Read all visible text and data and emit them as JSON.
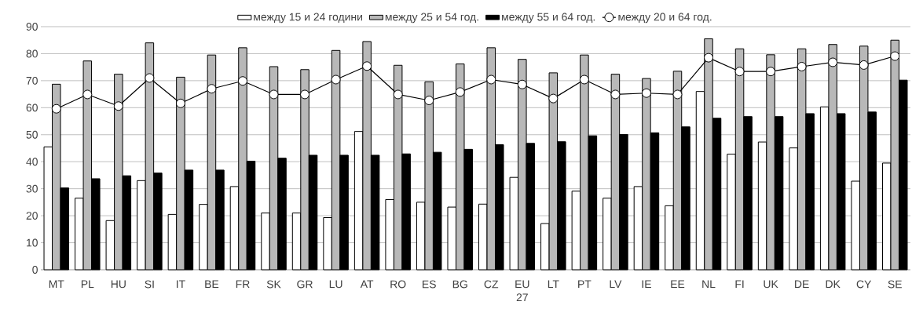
{
  "chart_data": {
    "type": "bar",
    "categories": [
      "MT",
      "PL",
      "HU",
      "SI",
      "IT",
      "BE",
      "FR",
      "SK",
      "GR",
      "LU",
      "AT",
      "RO",
      "ES",
      "BG",
      "CZ",
      "EU 27",
      "LT",
      "PT",
      "LV",
      "IE",
      "EE",
      "NL",
      "FI",
      "UK",
      "DE",
      "DK",
      "CY",
      "SE"
    ],
    "series": [
      {
        "name": "между 15 и 24 години",
        "color": "#ffffff",
        "values": [
          45.5,
          26.5,
          18.2,
          33,
          20.5,
          24.2,
          30.8,
          21,
          21,
          19.3,
          51.2,
          26,
          25,
          23.2,
          24.3,
          34.2,
          17.1,
          29.1,
          26.5,
          30.8,
          23.7,
          66,
          42.8,
          47.3,
          45.1,
          60.3,
          32.8,
          39.5
        ]
      },
      {
        "name": "между 25 и 54 год.",
        "color": "#b8b8b8",
        "values": [
          68.7,
          77.3,
          72.4,
          84,
          71.3,
          79.5,
          82.2,
          75.2,
          74.1,
          81.2,
          84.5,
          75.7,
          69.6,
          76.2,
          82.2,
          77.9,
          72.9,
          79.5,
          72.4,
          70.8,
          73.5,
          85.5,
          81.8,
          79.6,
          81.8,
          83.4,
          82.8,
          85
        ]
      },
      {
        "name": "между 55 и 64 год.",
        "color": "#000000",
        "values": [
          30.3,
          33.7,
          34.8,
          35.8,
          36.9,
          36.9,
          40.2,
          41.3,
          42.4,
          42.4,
          42.4,
          42.9,
          43.5,
          44.6,
          46.3,
          46.8,
          47.4,
          49.6,
          50.1,
          50.7,
          52.9,
          56.1,
          56.7,
          56.7,
          57.8,
          57.8,
          58.4,
          70.2
        ]
      },
      {
        "name": "между 20 и 64 год.",
        "color": "#000000",
        "type": "line",
        "marker": "circle",
        "values": [
          59.6,
          64.9,
          60.6,
          71,
          61.6,
          67,
          69.9,
          64.9,
          64.9,
          70.4,
          75.4,
          64.9,
          62.7,
          65.8,
          70.4,
          68.6,
          63.4,
          70.4,
          64.9,
          65.4,
          64.9,
          78.5,
          73.4,
          73.4,
          75.2,
          76.8,
          75.8,
          79.1
        ]
      }
    ],
    "ylim": [
      0,
      90
    ],
    "yticks": [
      0,
      10,
      20,
      30,
      40,
      50,
      60,
      70,
      80,
      90
    ],
    "grid": "y",
    "legend": "top"
  }
}
